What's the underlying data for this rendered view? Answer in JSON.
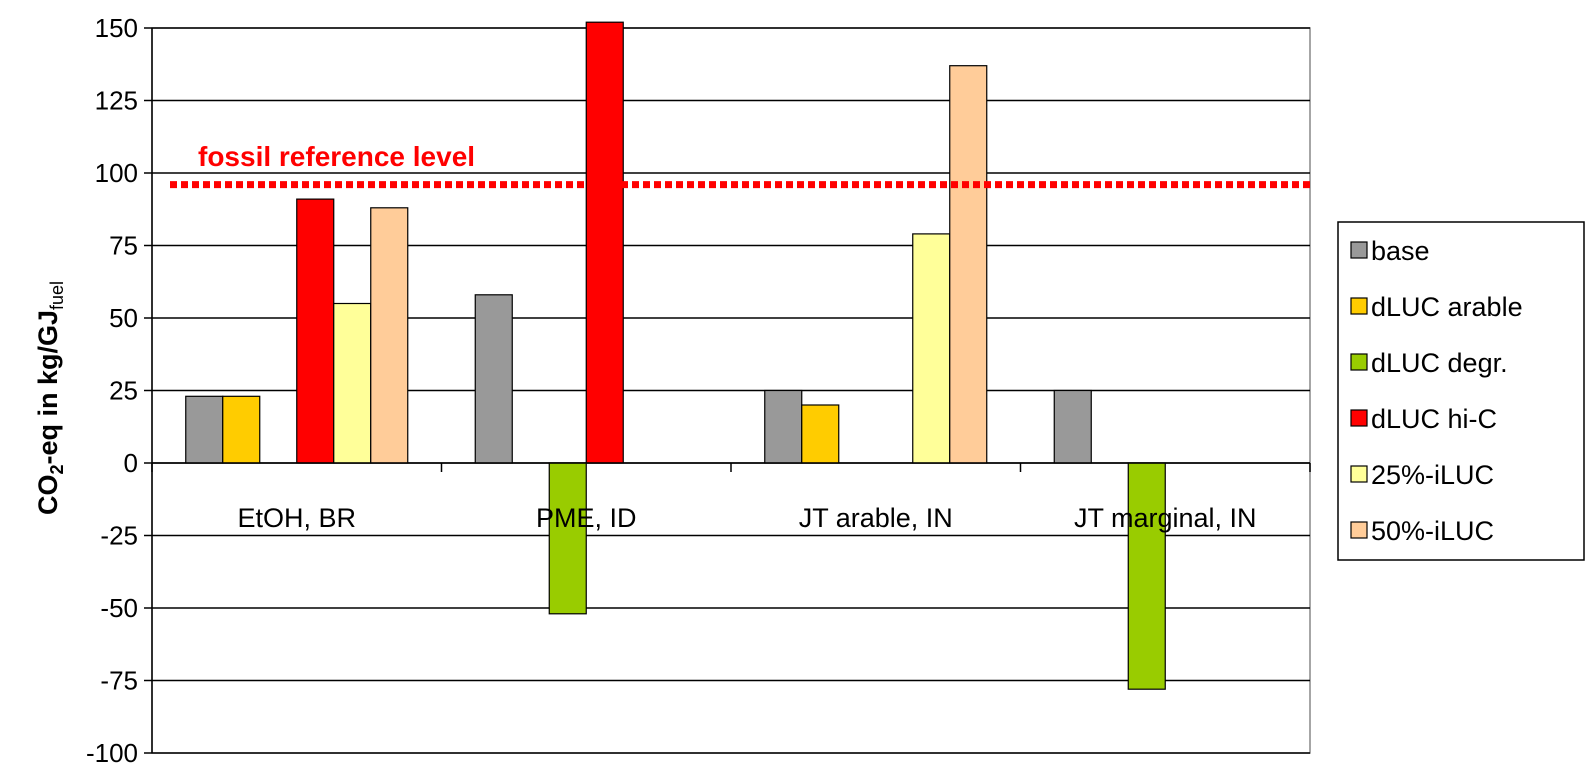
{
  "chart_data": {
    "type": "bar",
    "ylabel_main": "CO",
    "ylabel_sub": "2",
    "ylabel_rest": "-eq in kg/GJ",
    "ylabel_sub2": "fuel",
    "ylim": [
      -100,
      150
    ],
    "yticks": [
      "150",
      "125",
      "100",
      "75",
      "50",
      "25",
      "0",
      "-25",
      "-50",
      "-75",
      "-100"
    ],
    "ytick_values": [
      150,
      125,
      100,
      75,
      50,
      25,
      0,
      -25,
      -50,
      -75,
      -100
    ],
    "grid": true,
    "legend_position": "right",
    "categories": [
      "EtOH, BR",
      "PME, ID",
      "JT arable, IN",
      "JT marginal, IN"
    ],
    "series": [
      {
        "name": "base",
        "color": "#999999",
        "values": [
          23,
          58,
          25,
          25
        ]
      },
      {
        "name": "dLUC arable",
        "color": "#ffcc00",
        "values": [
          23,
          null,
          20,
          null
        ]
      },
      {
        "name": "dLUC degr.",
        "color": "#99cc00",
        "values": [
          null,
          -52,
          null,
          -78
        ]
      },
      {
        "name": "dLUC hi-C",
        "color": "#ff0000",
        "values": [
          91,
          152,
          null,
          null
        ]
      },
      {
        "name": "25%-iLUC",
        "color": "#ffff99",
        "values": [
          55,
          null,
          79,
          null
        ]
      },
      {
        "name": "50%-iLUC",
        "color": "#ffcc99",
        "values": [
          88,
          null,
          137,
          null
        ]
      }
    ],
    "reference_line": {
      "label": "fossil reference level",
      "value": 96,
      "color": "#ff0000"
    }
  }
}
